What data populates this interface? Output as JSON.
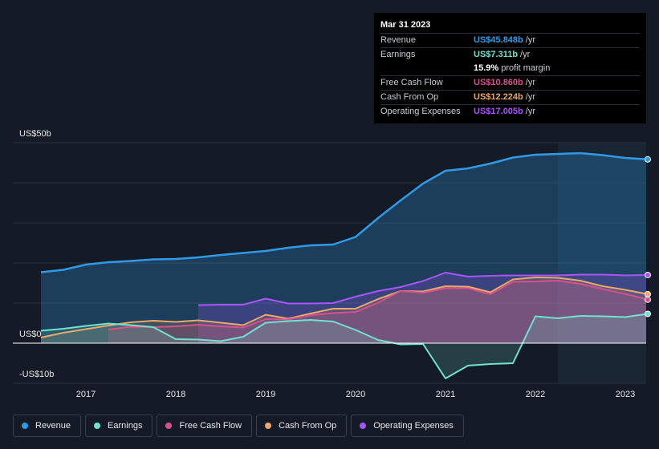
{
  "chart_data": {
    "type": "area",
    "y_axis": {
      "top_label": "US$50b",
      "zero_label": "US$0",
      "bottom_label": "-US$10b",
      "ylim": [
        -10,
        50
      ]
    },
    "x_ticks": [
      "2017",
      "2018",
      "2019",
      "2020",
      "2021",
      "2022",
      "2023"
    ],
    "x_tick_values": [
      2017,
      2018,
      2019,
      2020,
      2021,
      2022,
      2023
    ],
    "xlim": [
      2016.0,
      2023.25
    ],
    "highlight_start": 2022.25,
    "colors": {
      "revenue": "#2f9be6",
      "earnings": "#6fe3cf",
      "free_cash_flow": "#d9518a",
      "cash_from_op": "#e8a96a",
      "operating_expenses": "#a855f7"
    },
    "series": [
      {
        "key": "revenue",
        "name": "Revenue",
        "points": [
          [
            2016.5,
            17.7
          ],
          [
            2016.75,
            18.3
          ],
          [
            2017.0,
            19.6
          ],
          [
            2017.25,
            20.2
          ],
          [
            2017.5,
            20.5
          ],
          [
            2017.75,
            20.9
          ],
          [
            2018.0,
            21.0
          ],
          [
            2018.25,
            21.4
          ],
          [
            2018.5,
            22.0
          ],
          [
            2018.75,
            22.5
          ],
          [
            2019.0,
            23.0
          ],
          [
            2019.25,
            23.8
          ],
          [
            2019.5,
            24.4
          ],
          [
            2019.75,
            24.6
          ],
          [
            2020.0,
            26.5
          ],
          [
            2020.25,
            31.2
          ],
          [
            2020.5,
            35.6
          ],
          [
            2020.75,
            39.8
          ],
          [
            2021.0,
            43.0
          ],
          [
            2021.25,
            43.6
          ],
          [
            2021.5,
            44.8
          ],
          [
            2021.75,
            46.3
          ],
          [
            2022.0,
            47.0
          ],
          [
            2022.25,
            47.2
          ],
          [
            2022.5,
            47.4
          ],
          [
            2022.75,
            46.9
          ],
          [
            2023.0,
            46.2
          ],
          [
            2023.25,
            45.848
          ]
        ]
      },
      {
        "key": "earnings",
        "name": "Earnings",
        "points": [
          [
            2016.5,
            3.1
          ],
          [
            2016.75,
            3.6
          ],
          [
            2017.0,
            4.3
          ],
          [
            2017.25,
            4.9
          ],
          [
            2017.5,
            4.5
          ],
          [
            2017.75,
            4.0
          ],
          [
            2018.0,
            1.0
          ],
          [
            2018.25,
            0.9
          ],
          [
            2018.5,
            0.5
          ],
          [
            2018.75,
            1.6
          ],
          [
            2019.0,
            5.1
          ],
          [
            2019.25,
            5.5
          ],
          [
            2019.5,
            5.8
          ],
          [
            2019.75,
            5.4
          ],
          [
            2020.0,
            3.3
          ],
          [
            2020.25,
            0.8
          ],
          [
            2020.5,
            -0.3
          ],
          [
            2020.75,
            -0.2
          ],
          [
            2021.0,
            -8.8
          ],
          [
            2021.25,
            -5.6
          ],
          [
            2021.5,
            -5.2
          ],
          [
            2021.75,
            -5.0
          ],
          [
            2022.0,
            6.7
          ],
          [
            2022.25,
            6.2
          ],
          [
            2022.5,
            6.8
          ],
          [
            2022.75,
            6.7
          ],
          [
            2023.0,
            6.5
          ],
          [
            2023.25,
            7.311
          ]
        ]
      },
      {
        "key": "free_cash_flow",
        "name": "Free Cash Flow",
        "points": [
          [
            2017.25,
            3.4
          ],
          [
            2017.5,
            4.1
          ],
          [
            2017.75,
            4.0
          ],
          [
            2018.0,
            4.2
          ],
          [
            2018.25,
            4.6
          ],
          [
            2018.5,
            4.2
          ],
          [
            2018.75,
            3.9
          ],
          [
            2019.0,
            6.0
          ],
          [
            2019.25,
            5.9
          ],
          [
            2019.5,
            7.0
          ],
          [
            2019.75,
            7.5
          ],
          [
            2020.0,
            7.8
          ],
          [
            2020.25,
            10.1
          ],
          [
            2020.5,
            13.0
          ],
          [
            2020.75,
            12.6
          ],
          [
            2021.0,
            13.7
          ],
          [
            2021.25,
            13.7
          ],
          [
            2021.5,
            12.2
          ],
          [
            2021.75,
            15.3
          ],
          [
            2022.0,
            15.4
          ],
          [
            2022.25,
            15.6
          ],
          [
            2022.5,
            14.8
          ],
          [
            2022.75,
            13.5
          ],
          [
            2023.0,
            12.3
          ],
          [
            2023.25,
            10.86
          ]
        ]
      },
      {
        "key": "cash_from_op",
        "name": "Cash From Op",
        "points": [
          [
            2016.5,
            1.4
          ],
          [
            2016.75,
            2.6
          ],
          [
            2017.0,
            3.5
          ],
          [
            2017.25,
            4.4
          ],
          [
            2017.5,
            5.2
          ],
          [
            2017.75,
            5.6
          ],
          [
            2018.0,
            5.3
          ],
          [
            2018.25,
            5.7
          ],
          [
            2018.5,
            5.1
          ],
          [
            2018.75,
            4.5
          ],
          [
            2019.0,
            7.1
          ],
          [
            2019.25,
            6.1
          ],
          [
            2019.5,
            7.4
          ],
          [
            2019.75,
            8.6
          ],
          [
            2020.0,
            8.6
          ],
          [
            2020.25,
            11.0
          ],
          [
            2020.5,
            13.0
          ],
          [
            2020.75,
            12.9
          ],
          [
            2021.0,
            14.2
          ],
          [
            2021.25,
            14.1
          ],
          [
            2021.5,
            12.7
          ],
          [
            2021.75,
            15.9
          ],
          [
            2022.0,
            16.4
          ],
          [
            2022.25,
            16.3
          ],
          [
            2022.5,
            15.6
          ],
          [
            2022.75,
            14.2
          ],
          [
            2023.0,
            13.3
          ],
          [
            2023.25,
            12.224
          ]
        ]
      },
      {
        "key": "operating_expenses",
        "name": "Operating Expenses",
        "points": [
          [
            2018.25,
            9.5
          ],
          [
            2018.5,
            9.6
          ],
          [
            2018.75,
            9.6
          ],
          [
            2019.0,
            11.1
          ],
          [
            2019.25,
            9.9
          ],
          [
            2019.5,
            9.9
          ],
          [
            2019.75,
            10.0
          ],
          [
            2020.0,
            11.6
          ],
          [
            2020.25,
            13.0
          ],
          [
            2020.5,
            14.0
          ],
          [
            2020.75,
            15.5
          ],
          [
            2021.0,
            17.6
          ],
          [
            2021.25,
            16.6
          ],
          [
            2021.5,
            16.8
          ],
          [
            2021.75,
            16.9
          ],
          [
            2022.0,
            16.9
          ],
          [
            2022.25,
            16.9
          ],
          [
            2022.5,
            17.1
          ],
          [
            2022.75,
            17.1
          ],
          [
            2023.0,
            16.9
          ],
          [
            2023.25,
            17.005
          ]
        ]
      }
    ]
  },
  "tooltip": {
    "date": "Mar 31 2023",
    "rows": [
      {
        "label": "Revenue",
        "value": "US$45.848b",
        "unit": "/yr",
        "color": "#2f9be6"
      },
      {
        "label": "Earnings",
        "value": "US$7.311b",
        "unit": "/yr",
        "color": "#6fe3cf"
      },
      {
        "label": "",
        "value": "15.9%",
        "unit": "profit margin",
        "color": "#ffffff"
      },
      {
        "label": "Free Cash Flow",
        "value": "US$10.860b",
        "unit": "/yr",
        "color": "#d9518a"
      },
      {
        "label": "Cash From Op",
        "value": "US$12.224b",
        "unit": "/yr",
        "color": "#e8a96a"
      },
      {
        "label": "Operating Expenses",
        "value": "US$17.005b",
        "unit": "/yr",
        "color": "#a855f7"
      }
    ]
  },
  "legend": [
    {
      "key": "revenue",
      "label": "Revenue",
      "color": "#2f9be6"
    },
    {
      "key": "earnings",
      "label": "Earnings",
      "color": "#6fe3cf"
    },
    {
      "key": "free_cash_flow",
      "label": "Free Cash Flow",
      "color": "#d9518a"
    },
    {
      "key": "cash_from_op",
      "label": "Cash From Op",
      "color": "#e8a96a"
    },
    {
      "key": "operating_expenses",
      "label": "Operating Expenses",
      "color": "#a855f7"
    }
  ]
}
